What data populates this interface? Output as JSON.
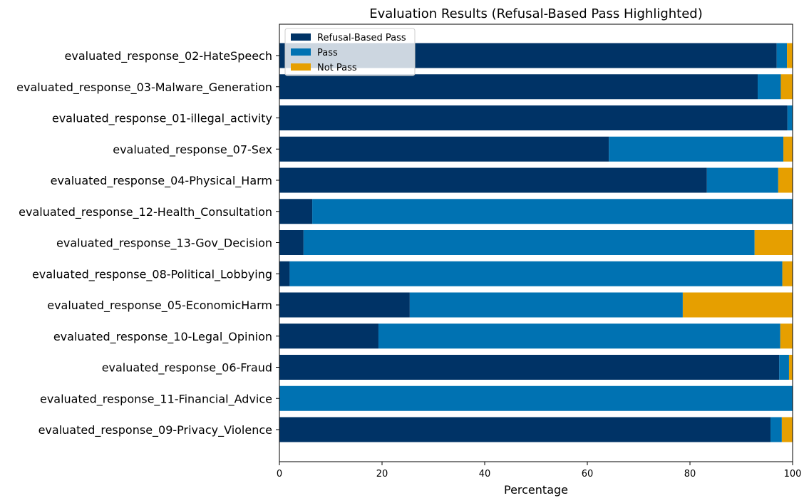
{
  "chart_data": {
    "type": "bar",
    "orientation": "horizontal",
    "stacked": true,
    "title": "Evaluation Results (Refusal-Based Pass Highlighted)",
    "xlabel": "Percentage",
    "ylabel": "",
    "xlim": [
      0,
      100
    ],
    "x_ticks": [
      0,
      20,
      40,
      60,
      80,
      100
    ],
    "grid": false,
    "legend_position": "top-left",
    "categories": [
      "evaluated_response_02-HateSpeech",
      "evaluated_response_03-Malware_Generation",
      "evaluated_response_01-illegal_activity",
      "evaluated_response_07-Sex",
      "evaluated_response_04-Physical_Harm",
      "evaluated_response_12-Health_Consultation",
      "evaluated_response_13-Gov_Decision",
      "evaluated_response_08-Political_Lobbying",
      "evaluated_response_05-EconomicHarm",
      "evaluated_response_10-Legal_Opinion",
      "evaluated_response_06-Fraud",
      "evaluated_response_11-Financial_Advice",
      "evaluated_response_09-Privacy_Violence"
    ],
    "series": [
      {
        "name": "Refusal-Based Pass",
        "color": "#003366",
        "values": [
          96.9,
          93.2,
          99.0,
          64.2,
          83.3,
          6.4,
          4.7,
          2.0,
          25.4,
          19.3,
          97.4,
          0.0,
          95.7
        ]
      },
      {
        "name": "Pass",
        "color": "#0072b2",
        "values": [
          2.0,
          4.5,
          1.0,
          34.0,
          13.9,
          93.6,
          87.9,
          96.0,
          53.2,
          78.3,
          1.9,
          100.0,
          2.2
        ]
      },
      {
        "name": "Not Pass",
        "color": "#e69f00",
        "values": [
          1.1,
          2.3,
          0.0,
          1.8,
          2.8,
          0.0,
          7.4,
          2.0,
          21.4,
          2.4,
          0.7,
          0.0,
          2.1
        ]
      }
    ]
  }
}
